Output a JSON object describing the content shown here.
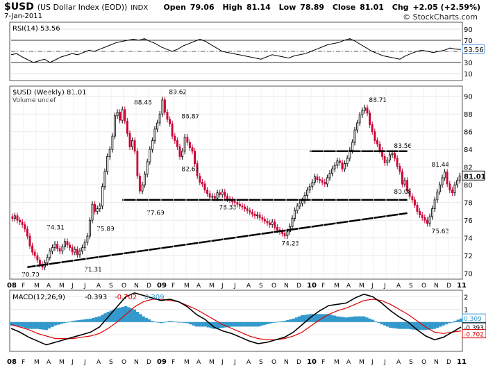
{
  "header": {
    "ticker": "$USD",
    "name": "(US Dollar Index (EOD))",
    "exchange": "INDX",
    "date": "7-Jan-2011",
    "open_label": "Open",
    "open": "79.06",
    "high_label": "High",
    "high": "81.14",
    "low_label": "Low",
    "low": "78.89",
    "close_label": "Close",
    "close": "81.01",
    "chg_label": "Chg",
    "chg": "+2.05 (+2.59%)",
    "brand": "© StockCharts.com"
  },
  "colors": {
    "up": "#000000",
    "down": "#cc0033",
    "ma_red": "#dd0000",
    "histogram": "#3399cc",
    "rsi_fill": "#4a7a4a",
    "grid": "#cccccc",
    "panel_border": "#555555"
  },
  "chart_data": [
    {
      "type": "line",
      "panel": "RSI",
      "title": "RSI(14) 53.56",
      "ylim": [
        0,
        100
      ],
      "yticks": [
        10,
        30,
        50,
        70,
        90
      ],
      "reference_lines": [
        30,
        70
      ],
      "current_value": 53.56,
      "x_start_week": 0,
      "series": [
        {
          "name": "RSI(14)",
          "values": [
            44,
            46,
            40,
            35,
            30,
            33,
            36,
            30,
            35,
            40,
            43,
            46,
            44,
            48,
            52,
            50,
            54,
            58,
            62,
            66,
            68,
            70,
            72,
            70,
            73,
            68,
            64,
            58,
            54,
            50,
            54,
            60,
            64,
            68,
            72,
            68,
            62,
            56,
            50,
            48,
            46,
            44,
            42,
            40,
            38,
            36,
            40,
            44,
            42,
            40,
            38,
            42,
            44,
            46,
            50,
            54,
            58,
            62,
            64,
            66,
            70,
            73,
            68,
            62,
            56,
            50,
            46,
            42,
            40,
            38,
            36,
            42,
            46,
            50,
            52,
            50,
            48,
            50,
            52,
            56,
            54,
            53.56
          ]
        }
      ]
    },
    {
      "type": "candlestick",
      "panel": "Price",
      "title": "$USD (Weekly) 81.01",
      "volume_note": "Volume undef",
      "ylim": [
        69.5,
        91
      ],
      "yticks": [
        70,
        72,
        74,
        76,
        78,
        80,
        82,
        84,
        86,
        88,
        90
      ],
      "current_value": 81.01,
      "x": [
        "08",
        "F",
        "M",
        "A",
        "M",
        "J",
        "J",
        "A",
        "S",
        "O",
        "N",
        "D",
        "09",
        "F",
        "M",
        "A",
        "M",
        "J",
        "J",
        "A",
        "S",
        "O",
        "N",
        "D",
        "10",
        "F",
        "M",
        "A",
        "M",
        "J",
        "J",
        "A",
        "S",
        "O",
        "N",
        "D",
        "11"
      ],
      "weekly_close": [
        76.2,
        76.5,
        76.0,
        75.8,
        75.5,
        75.0,
        74.2,
        73.1,
        72.4,
        72.0,
        71.5,
        71.0,
        70.7,
        71.2,
        71.8,
        72.5,
        72.9,
        73.3,
        72.8,
        72.5,
        73.0,
        73.6,
        73.2,
        72.9,
        72.4,
        72.7,
        72.1,
        72.5,
        72.9,
        73.5,
        74.2,
        76.0,
        77.8,
        77.0,
        77.3,
        77.6,
        79.8,
        81.5,
        83.2,
        84.0,
        85.5,
        87.8,
        88.2,
        87.3,
        88.5,
        87.2,
        85.8,
        84.3,
        85.0,
        83.8,
        81.0,
        79.3,
        80.0,
        81.2,
        82.6,
        84.0,
        85.0,
        86.3,
        87.0,
        88.0,
        89.6,
        88.2,
        87.4,
        86.9,
        85.5,
        85.0,
        84.3,
        83.2,
        83.8,
        85.4,
        84.8,
        84.2,
        83.8,
        82.4,
        81.0,
        80.3,
        80.1,
        79.4,
        79.0,
        78.6,
        78.7,
        78.5,
        79.1,
        78.9,
        79.2,
        78.7,
        78.4,
        78.3,
        78.1,
        78.0,
        77.8,
        77.6,
        77.5,
        77.3,
        77.1,
        76.9,
        76.7,
        76.5,
        76.6,
        76.3,
        76.1,
        75.9,
        75.7,
        75.5,
        75.8,
        75.2,
        74.9,
        74.7,
        74.5,
        74.23,
        74.7,
        75.3,
        76.2,
        77.1,
        77.6,
        77.9,
        78.2,
        78.8,
        79.4,
        79.8,
        80.3,
        80.9,
        80.6,
        80.5,
        80.3,
        80.1,
        80.8,
        81.3,
        81.8,
        82.2,
        82.7,
        82.5,
        81.8,
        82.4,
        83.0,
        83.9,
        84.8,
        86.2,
        87.0,
        87.9,
        88.4,
        88.71,
        88.1,
        86.8,
        86.0,
        85.0,
        84.6,
        83.9,
        83.2,
        82.5,
        82.8,
        83.4,
        83.56,
        83.0,
        82.1,
        81.5,
        80.08,
        80.5,
        79.3,
        78.7,
        78.3,
        77.7,
        77.0,
        76.6,
        76.3,
        76.0,
        75.63,
        76.4,
        77.3,
        78.3,
        79.2,
        80.0,
        80.8,
        81.44,
        80.1,
        79.4,
        79.1,
        80.0,
        80.5,
        81.01
      ],
      "labels": [
        {
          "text": "70.70",
          "x": "08 Feb",
          "y": 70.7
        },
        {
          "text": "74.31",
          "x": "08 Apr",
          "y": 74.31
        },
        {
          "text": "71.31",
          "x": "08 Jul",
          "y": 71.31
        },
        {
          "text": "75.89",
          "x": "08 Aug",
          "y": 75.89
        },
        {
          "text": "88.46",
          "x": "08 Nov",
          "y": 88.46
        },
        {
          "text": "77.69",
          "x": "08 Dec",
          "y": 77.69
        },
        {
          "text": "89.62",
          "x": "09 Feb",
          "y": 89.62
        },
        {
          "text": "86.87",
          "x": "09 Mar",
          "y": 86.87
        },
        {
          "text": "82.63",
          "x": "09 Mar",
          "y": 82.63
        },
        {
          "text": "78.33",
          "x": "09 Jun",
          "y": 78.33
        },
        {
          "text": "74.23",
          "x": "09 Nov",
          "y": 74.23
        },
        {
          "text": "88.71",
          "x": "10 Jun",
          "y": 88.71
        },
        {
          "text": "83.56",
          "x": "10 Aug",
          "y": 83.56
        },
        {
          "text": "80.08",
          "x": "10 Aug",
          "y": 80.08
        },
        {
          "text": "75.63",
          "x": "10 Nov",
          "y": 75.63
        },
        {
          "text": "81.44",
          "x": "10 Nov",
          "y": 81.44
        }
      ],
      "trendlines": [
        {
          "from_week": 6,
          "from": 70.7,
          "to_week": 158,
          "to": 76.8
        },
        {
          "from_week": 44,
          "from": 78.3,
          "to_week": 158,
          "to": 78.3
        },
        {
          "from_week": 119,
          "from": 83.8,
          "to_week": 158,
          "to": 83.8
        }
      ]
    },
    {
      "type": "line",
      "panel": "MACD",
      "title": "MACD(12,26,9)",
      "values_text": [
        "-0.393",
        "-0.702",
        "0.309"
      ],
      "yticks": [
        2,
        1,
        0,
        -1
      ],
      "ylim": [
        -2.2,
        2.4
      ],
      "current_values": {
        "macd": -0.393,
        "signal": -0.702,
        "histogram": 0.309
      },
      "series": [
        {
          "name": "MACD",
          "values": [
            -0.5,
            -0.8,
            -1.2,
            -1.5,
            -1.8,
            -1.6,
            -1.4,
            -1.2,
            -1.0,
            -0.8,
            -0.4,
            0.4,
            1.2,
            2.0,
            2.3,
            2.1,
            1.9,
            1.7,
            1.8,
            1.6,
            1.2,
            0.6,
            0.2,
            -0.4,
            -0.7,
            -0.9,
            -1.2,
            -1.5,
            -1.7,
            -1.6,
            -1.4,
            -1.2,
            -0.8,
            -0.2,
            0.4,
            0.9,
            1.3,
            1.4,
            1.5,
            1.9,
            2.2,
            2.0,
            1.5,
            0.9,
            0.4,
            0.0,
            -0.6,
            -1.1,
            -1.4,
            -1.2,
            -0.8,
            -0.393
          ]
        },
        {
          "name": "Signal",
          "values": [
            -0.2,
            -0.4,
            -0.6,
            -0.9,
            -1.1,
            -1.3,
            -1.3,
            -1.3,
            -1.2,
            -1.1,
            -0.9,
            -0.5,
            0.0,
            0.6,
            1.2,
            1.6,
            1.8,
            1.8,
            1.7,
            1.6,
            1.3,
            1.0,
            0.6,
            0.2,
            -0.2,
            -0.5,
            -0.8,
            -1.1,
            -1.3,
            -1.4,
            -1.4,
            -1.3,
            -1.1,
            -0.8,
            -0.3,
            0.2,
            0.6,
            0.9,
            1.1,
            1.4,
            1.7,
            1.8,
            1.7,
            1.4,
            1.0,
            0.6,
            0.1,
            -0.4,
            -0.8,
            -0.9,
            -0.8,
            -0.702
          ]
        }
      ]
    }
  ]
}
